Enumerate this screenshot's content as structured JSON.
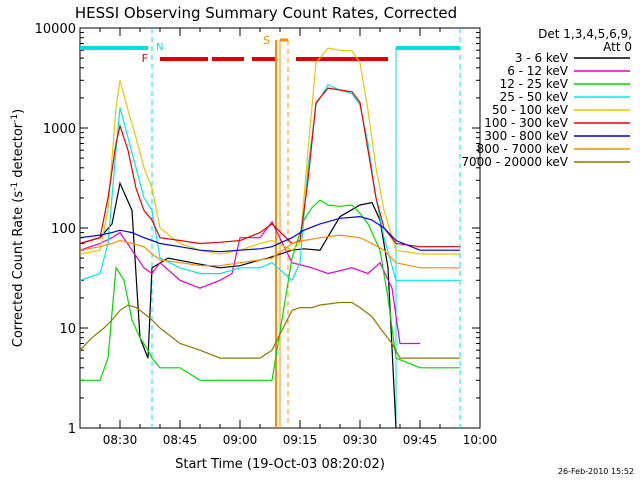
{
  "chart_data": {
    "type": "line",
    "title": "HESSI Observing Summary Count Rates, Corrected",
    "xlabel": "Start Time (19-Oct-03 08:20:02)",
    "ylabel": "Corrected Count Rate (s",
    "ylabel_sup1": "-1",
    "ylabel_mid": " detector",
    "ylabel_sup2": "-1",
    "ylabel_end": ")",
    "y_scale": "log",
    "ylim": [
      1,
      10000
    ],
    "xlim": [
      "08:20",
      "10:00"
    ],
    "x_ticks": [
      "08:30",
      "08:45",
      "09:00",
      "09:15",
      "09:30",
      "09:45",
      "10:00"
    ],
    "y_ticks": [
      "1",
      "10",
      "100",
      "1000",
      "10000"
    ],
    "legend": {
      "placement": "right",
      "header1": "Det 1,3,4,5,6,9,",
      "header2": "Att 0"
    },
    "timestamp": "26-Feb-2010 15:52",
    "series": [
      {
        "name": "3 - 6 keV",
        "color": "#000000",
        "x": [
          "08:20",
          "08:25",
          "08:28",
          "08:30",
          "08:33",
          "08:35",
          "08:37",
          "08:38",
          "08:42",
          "08:48",
          "08:55",
          "09:00",
          "09:05",
          "09:07",
          "09:13",
          "09:16",
          "09:20",
          "09:25",
          "09:30",
          "09:33",
          "09:35",
          "09:37",
          "09:39"
        ],
        "y": [
          70,
          80,
          110,
          280,
          150,
          8,
          5,
          40,
          50,
          45,
          40,
          42,
          48,
          50,
          60,
          62,
          60,
          130,
          170,
          180,
          120,
          40,
          1
        ]
      },
      {
        "name": "6 - 12 keV",
        "color": "#e000c8",
        "x": [
          "08:20",
          "08:25",
          "08:28",
          "08:30",
          "08:33",
          "08:36",
          "08:38",
          "08:40",
          "08:45",
          "08:50",
          "08:55",
          "08:58",
          "09:00",
          "09:05",
          "09:08",
          "09:13",
          "09:18",
          "09:22",
          "09:28",
          "09:32",
          "09:35",
          "09:38",
          "09:40",
          "09:45"
        ],
        "y": [
          60,
          70,
          80,
          90,
          60,
          40,
          35,
          45,
          30,
          25,
          30,
          35,
          80,
          80,
          115,
          45,
          40,
          35,
          40,
          35,
          45,
          25,
          7,
          7
        ]
      },
      {
        "name": "12 - 25 keV",
        "color": "#00d800",
        "x": [
          "08:20",
          "08:25",
          "08:27",
          "08:29",
          "08:31",
          "08:33",
          "08:35",
          "08:37",
          "08:38",
          "08:40",
          "08:45",
          "08:50",
          "08:55",
          "09:00",
          "09:05",
          "09:08",
          "09:13",
          "09:16",
          "09:18",
          "09:20",
          "09:22",
          "09:25",
          "09:28",
          "09:30",
          "09:32",
          "09:35",
          "09:37",
          "09:39",
          "09:45",
          "09:55"
        ],
        "y": [
          3,
          3,
          5,
          40,
          30,
          12,
          8,
          6,
          5,
          4,
          4,
          3,
          3,
          3,
          3,
          3,
          50,
          120,
          160,
          190,
          170,
          165,
          170,
          140,
          110,
          60,
          20,
          5,
          4,
          4
        ]
      },
      {
        "name": "25 - 50 keV",
        "color": "#00e8e8",
        "x": [
          "08:20",
          "08:25",
          "08:27",
          "08:29",
          "08:30",
          "08:32",
          "08:34",
          "08:36",
          "08:38",
          "08:40",
          "08:45",
          "08:50",
          "08:55",
          "09:00",
          "09:05",
          "09:08",
          "09:13",
          "09:15",
          "09:17",
          "09:19",
          "09:22",
          "09:25",
          "09:28",
          "09:30",
          "09:32",
          "09:34",
          "09:36",
          "09:39",
          "09:45",
          "09:55"
        ],
        "y": [
          30,
          35,
          70,
          600,
          1600,
          800,
          400,
          200,
          150,
          50,
          40,
          35,
          35,
          40,
          40,
          45,
          30,
          45,
          400,
          1700,
          2700,
          2400,
          2200,
          1700,
          700,
          200,
          80,
          30,
          30,
          30
        ]
      },
      {
        "name": "50 - 100 keV",
        "color": "#e8c800",
        "x": [
          "08:20",
          "08:25",
          "08:27",
          "08:29",
          "08:30",
          "08:32",
          "08:34",
          "08:36",
          "08:38",
          "08:40",
          "08:45",
          "08:50",
          "08:55",
          "09:00",
          "09:05",
          "09:08",
          "09:13",
          "09:15",
          "09:17",
          "09:19",
          "09:22",
          "09:25",
          "09:28",
          "09:30",
          "09:32",
          "09:34",
          "09:36",
          "09:39",
          "09:45",
          "09:55"
        ],
        "y": [
          55,
          60,
          150,
          1600,
          3000,
          1500,
          800,
          400,
          250,
          100,
          70,
          60,
          55,
          60,
          70,
          75,
          60,
          70,
          600,
          4500,
          6300,
          6000,
          5900,
          4500,
          1500,
          400,
          150,
          60,
          55,
          55
        ]
      },
      {
        "name": "100 - 300 keV",
        "color": "#e80000",
        "x": [
          "08:20",
          "08:25",
          "08:27",
          "08:29",
          "08:30",
          "08:32",
          "08:34",
          "08:36",
          "08:38",
          "08:40",
          "08:45",
          "08:50",
          "08:55",
          "09:00",
          "09:05",
          "09:08",
          "09:13",
          "09:15",
          "09:17",
          "09:19",
          "09:22",
          "09:25",
          "09:28",
          "09:30",
          "09:32",
          "09:34",
          "09:36",
          "09:39",
          "09:45",
          "09:55"
        ],
        "y": [
          70,
          80,
          200,
          700,
          1050,
          600,
          250,
          150,
          120,
          80,
          75,
          70,
          72,
          75,
          90,
          110,
          70,
          75,
          300,
          1800,
          2500,
          2400,
          2300,
          1800,
          600,
          200,
          100,
          70,
          65,
          65
        ]
      },
      {
        "name": "300 - 800 keV",
        "color": "#0000e0",
        "x": [
          "08:20",
          "08:25",
          "08:28",
          "08:30",
          "08:33",
          "08:36",
          "08:38",
          "08:40",
          "08:45",
          "08:50",
          "08:55",
          "09:00",
          "09:05",
          "09:08",
          "09:13",
          "09:16",
          "09:20",
          "09:25",
          "09:30",
          "09:33",
          "09:36",
          "09:39",
          "09:45",
          "09:55"
        ],
        "y": [
          80,
          85,
          90,
          95,
          90,
          80,
          75,
          70,
          65,
          60,
          58,
          60,
          62,
          65,
          80,
          95,
          110,
          125,
          130,
          120,
          100,
          75,
          60,
          60
        ]
      },
      {
        "name": "800 - 7000 keV",
        "color": "#ff8c00",
        "x": [
          "08:20",
          "08:25",
          "08:28",
          "08:30",
          "08:33",
          "08:36",
          "08:38",
          "08:40",
          "08:45",
          "08:50",
          "08:55",
          "09:00",
          "09:05",
          "09:08",
          "09:13",
          "09:16",
          "09:20",
          "09:25",
          "09:30",
          "09:33",
          "09:36",
          "09:39",
          "09:45",
          "09:55"
        ],
        "y": [
          60,
          65,
          70,
          75,
          70,
          65,
          55,
          48,
          45,
          42,
          42,
          45,
          48,
          50,
          70,
          75,
          80,
          85,
          80,
          70,
          60,
          45,
          40,
          40
        ]
      },
      {
        "name": "7000 - 20000 keV",
        "color": "#8c7a00",
        "x": [
          "08:20",
          "08:23",
          "08:26",
          "08:28",
          "08:30",
          "08:32",
          "08:34",
          "08:36",
          "08:38",
          "08:40",
          "08:45",
          "08:50",
          "08:55",
          "09:00",
          "09:05",
          "09:08",
          "09:13",
          "09:15",
          "09:18",
          "09:20",
          "09:25",
          "09:28",
          "09:30",
          "09:33",
          "09:35",
          "09:38",
          "09:40",
          "09:45",
          "09:55"
        ],
        "y": [
          6,
          8,
          10,
          12,
          15,
          17,
          16,
          14,
          12,
          10,
          7,
          6,
          5,
          5,
          5,
          6,
          15,
          16,
          16,
          17,
          18,
          18,
          16,
          13,
          10,
          7,
          5,
          5,
          5
        ]
      }
    ],
    "annotations": {
      "N": "N",
      "F": "F",
      "S": "S"
    }
  }
}
